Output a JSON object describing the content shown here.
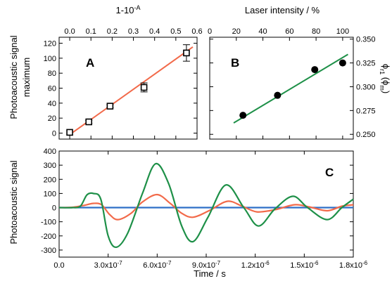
{
  "figure": {
    "ylabel_ab_line1": "Photoacoustic signal",
    "ylabel_ab_line2": "maximum",
    "ylabel_c": "Photoacoustic signal"
  },
  "chart_data": [
    {
      "panel": "A",
      "type": "scatter",
      "letter": "A",
      "xlabel": "1-10",
      "xlabel_superscript": "-A",
      "x_axis_position": "top",
      "xlim": [
        -0.05,
        0.6
      ],
      "ylim": [
        -8,
        128
      ],
      "xticks": [
        "0.0",
        "0.1",
        "0.2",
        "0.3",
        "0.4",
        "0.5",
        "0.6"
      ],
      "yticks": [
        "0",
        "20",
        "40",
        "60",
        "80",
        "100",
        "120"
      ],
      "marker": "open-square",
      "error_bars": true,
      "fit_line": {
        "color": "#f26a4a",
        "x": [
          0.0,
          0.58
        ],
        "y": [
          -2,
          115
        ]
      },
      "points": [
        {
          "x": 0.0,
          "y": 1,
          "err": 0
        },
        {
          "x": 0.09,
          "y": 15,
          "err": 2
        },
        {
          "x": 0.19,
          "y": 36,
          "err": 2
        },
        {
          "x": 0.35,
          "y": 61,
          "err": 6
        },
        {
          "x": 0.55,
          "y": 107,
          "err": 11
        }
      ]
    },
    {
      "panel": "B",
      "type": "scatter",
      "letter": "B",
      "xlabel": "Laser intensity / %",
      "x_axis_position": "top",
      "ylabel": "ϕ",
      "ylabel_display": "ϕr1 (ϕm)",
      "y_axis_position": "right",
      "xlim": [
        0,
        108
      ],
      "ylim": [
        0.245,
        0.352
      ],
      "xticks": [
        "0",
        "20",
        "40",
        "60",
        "80",
        "100"
      ],
      "yticks": [
        "0.250",
        "0.275",
        "0.300",
        "0.325",
        "0.350"
      ],
      "marker": "filled-circle",
      "fit_line": {
        "color": "#1e9048",
        "x": [
          18,
          104
        ],
        "y": [
          0.262,
          0.334
        ]
      },
      "points": [
        {
          "x": 25,
          "y": 0.27
        },
        {
          "x": 51,
          "y": 0.291
        },
        {
          "x": 79,
          "y": 0.318
        },
        {
          "x": 100,
          "y": 0.325
        }
      ]
    },
    {
      "panel": "C",
      "type": "line",
      "letter": "C",
      "xlabel": "Time / s",
      "xlim": [
        0,
        1.8e-06
      ],
      "ylim": [
        -350,
        400
      ],
      "xticks": [
        "0.0",
        "3.0x10-7",
        "6.0x10-7",
        "9.0x10-7",
        "1.2x10-6",
        "1.5x10-6",
        "1.8x10-6"
      ],
      "xtick_values": [
        0,
        3e-07,
        6e-07,
        9e-07,
        1.2e-06,
        1.5e-06,
        1.8e-06
      ],
      "yticks": [
        "400",
        "300",
        "200",
        "100",
        "0",
        "-100",
        "-200",
        "-300"
      ],
      "series": [
        {
          "color": "#1e9048",
          "x": [
            0,
            8e-08,
            1.3e-07,
            1.7e-07,
            2.1e-07,
            2.55e-07,
            3e-07,
            3.5e-07,
            4.2e-07,
            5.1e-07,
            5.9e-07,
            6.7e-07,
            7.5e-07,
            8.2e-07,
            9.1e-07,
            1.02e-06,
            1.13e-06,
            1.22e-06,
            1.32e-06,
            1.43e-06,
            1.52e-06,
            1.64e-06,
            1.73e-06,
            1.8e-06
          ],
          "y": [
            0,
            0,
            10,
            90,
            100,
            60,
            -200,
            -280,
            -180,
            100,
            310,
            170,
            -130,
            -240,
            -70,
            160,
            0,
            -130,
            -10,
            80,
            0,
            -85,
            0,
            60
          ]
        },
        {
          "color": "#f26a4a",
          "x": [
            0,
            8e-08,
            1.5e-07,
            2.1e-07,
            2.6e-07,
            3.1e-07,
            3.6e-07,
            4.4e-07,
            5.1e-07,
            6e-07,
            6.8e-07,
            7.5e-07,
            8.2e-07,
            9.2e-07,
            1.03e-06,
            1.12e-06,
            1.21e-06,
            1.32e-06,
            1.44e-06,
            1.53e-06,
            1.64e-06,
            1.73e-06,
            1.8e-06
          ],
          "y": [
            0,
            2,
            15,
            30,
            20,
            -50,
            -85,
            -40,
            40,
            92,
            30,
            -40,
            -68,
            -20,
            45,
            10,
            -30,
            -15,
            20,
            5,
            -22,
            10,
            20
          ]
        },
        {
          "color": "#2f6fc7",
          "x": [
            0,
            1.8e-06
          ],
          "y": [
            0,
            0
          ]
        }
      ]
    }
  ]
}
